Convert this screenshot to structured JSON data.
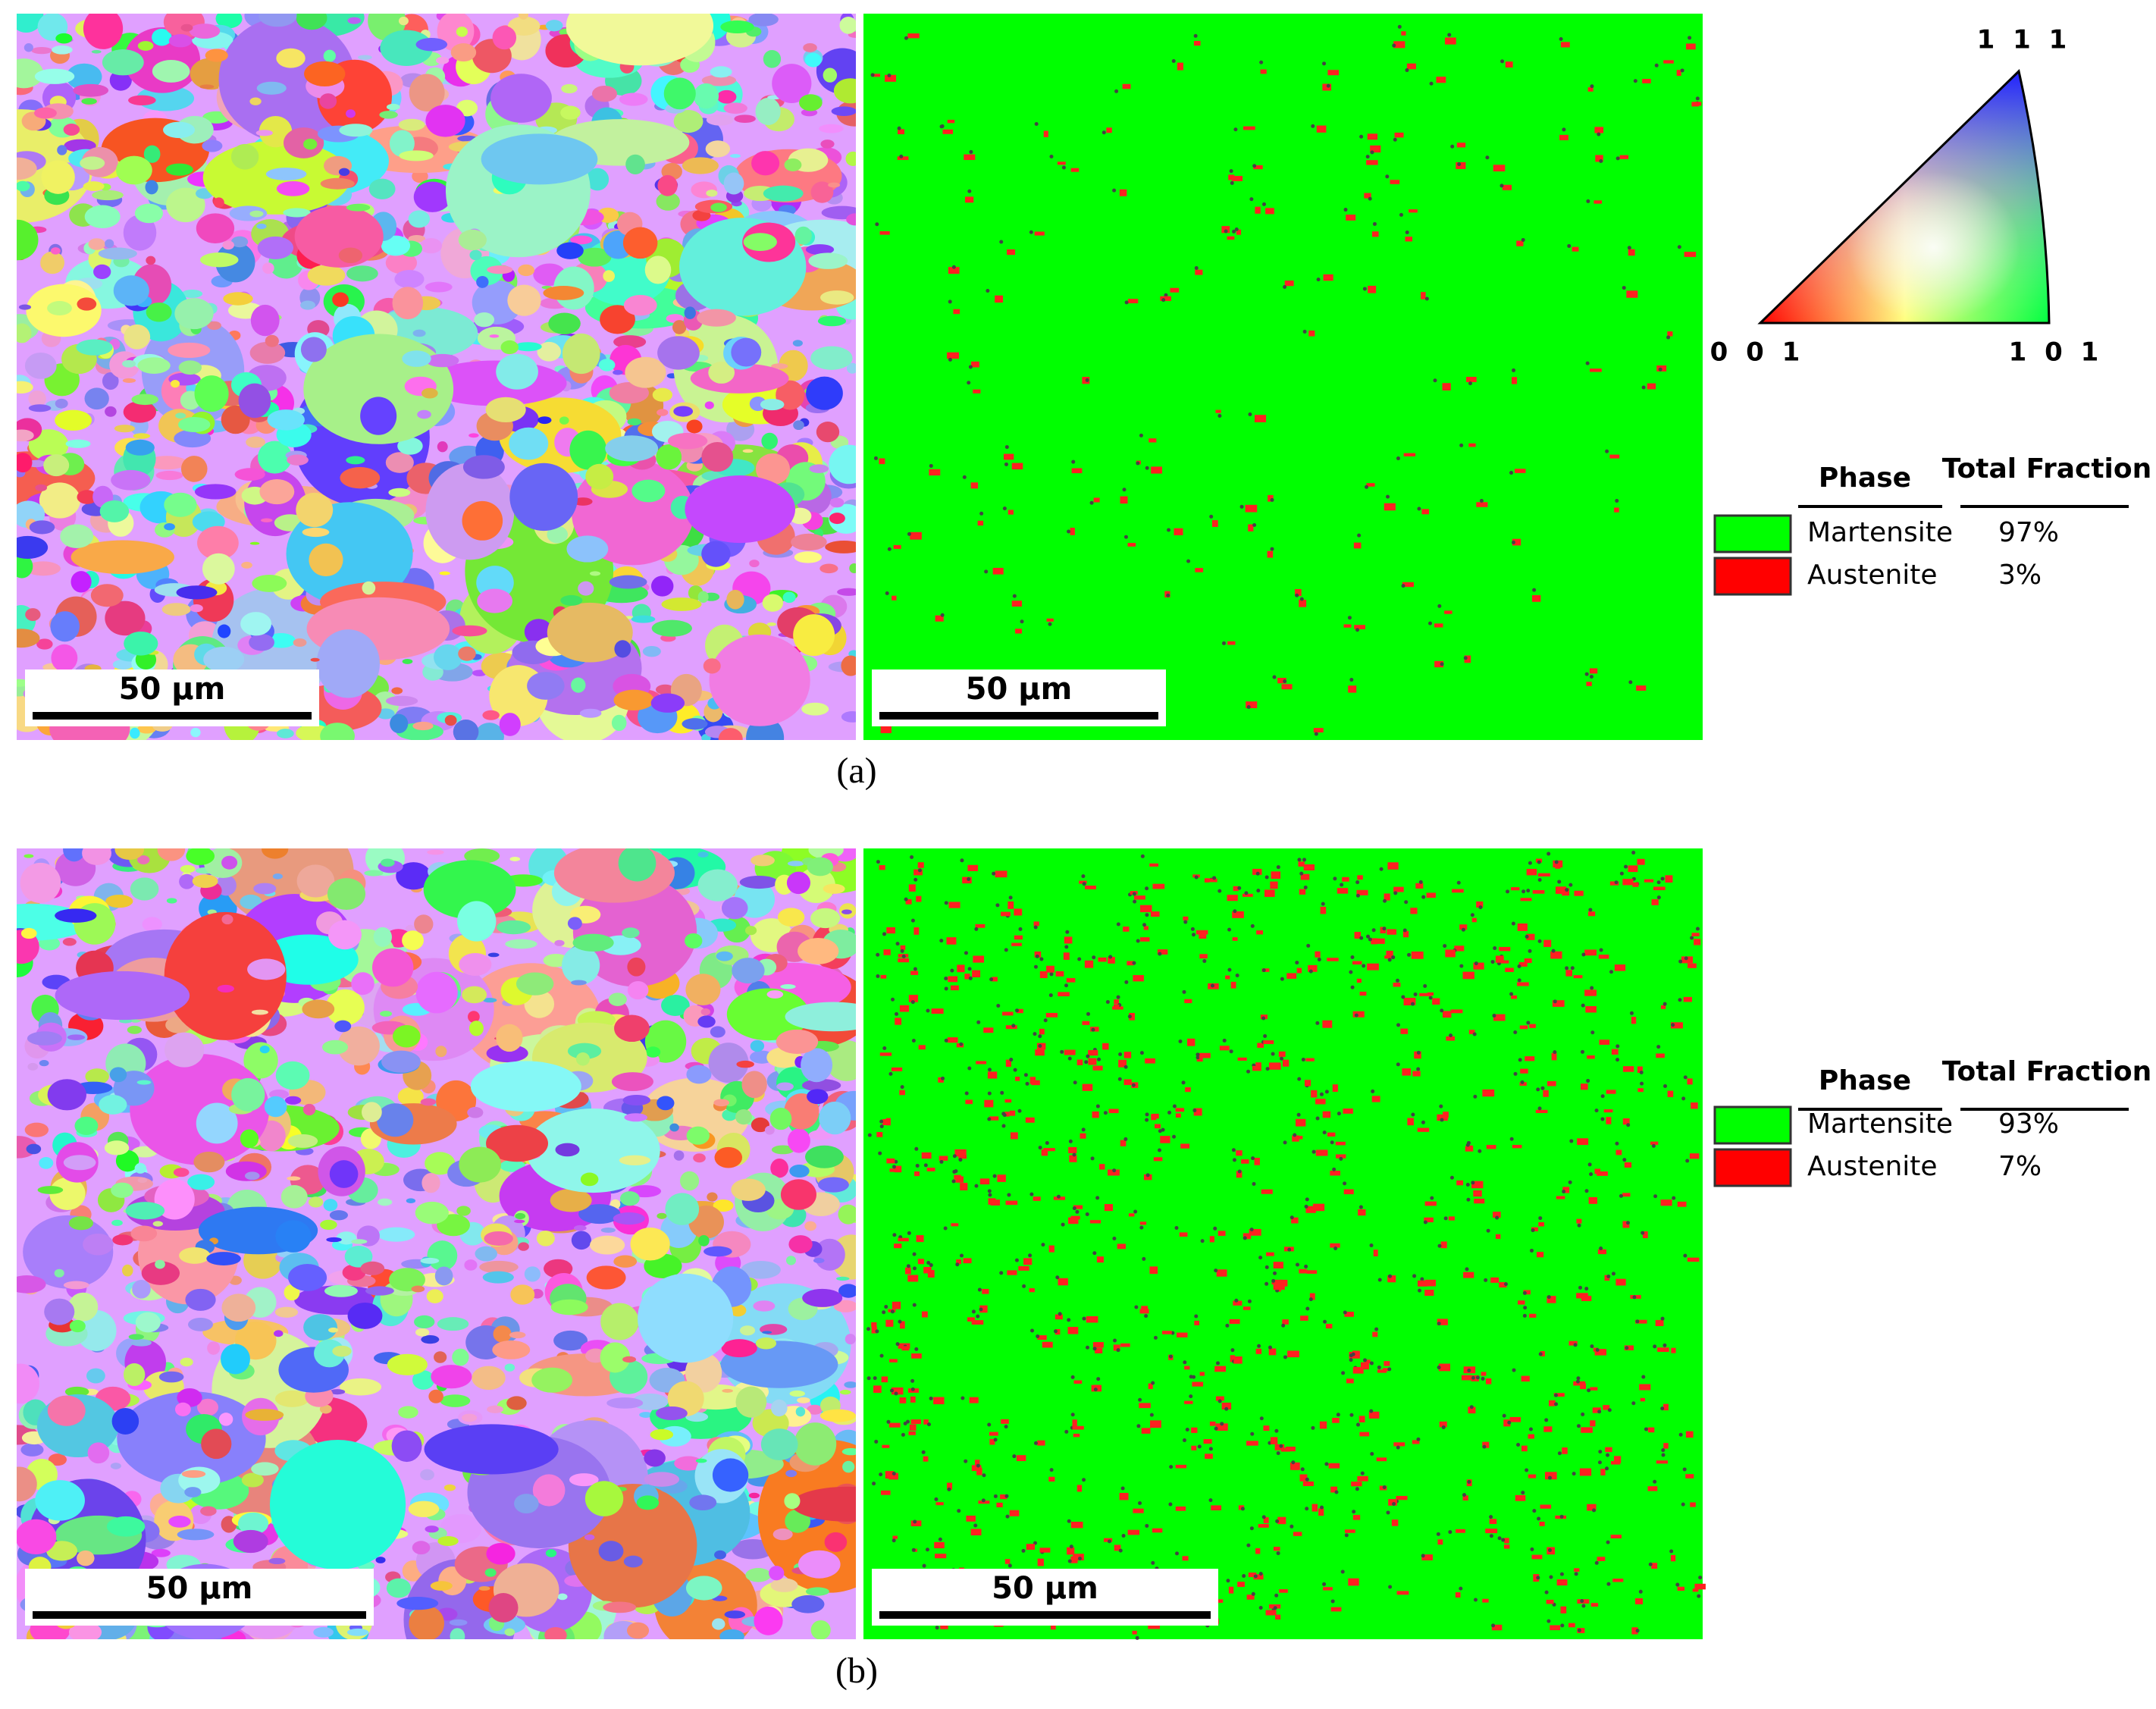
{
  "ipf_key": {
    "top": "1 1 1",
    "left": "0 0 1",
    "right": "1 0 1"
  },
  "panels": [
    {
      "caption": "(a)",
      "ipf_scale_bar": "50 µm",
      "phase_scale_bar": "50 µm",
      "legend": {
        "header": [
          "Phase",
          "Total Fraction"
        ],
        "rows": [
          [
            "Martensite",
            "97%"
          ],
          [
            "Austenite",
            "3%"
          ]
        ]
      }
    },
    {
      "caption": "(b)",
      "ipf_scale_bar": "50 µm",
      "phase_scale_bar": "50 µm",
      "legend": {
        "header": [
          "Phase",
          "Total Fraction"
        ],
        "rows": [
          [
            "Martensite",
            "93%"
          ],
          [
            "Austenite",
            "7%"
          ]
        ]
      }
    }
  ]
}
